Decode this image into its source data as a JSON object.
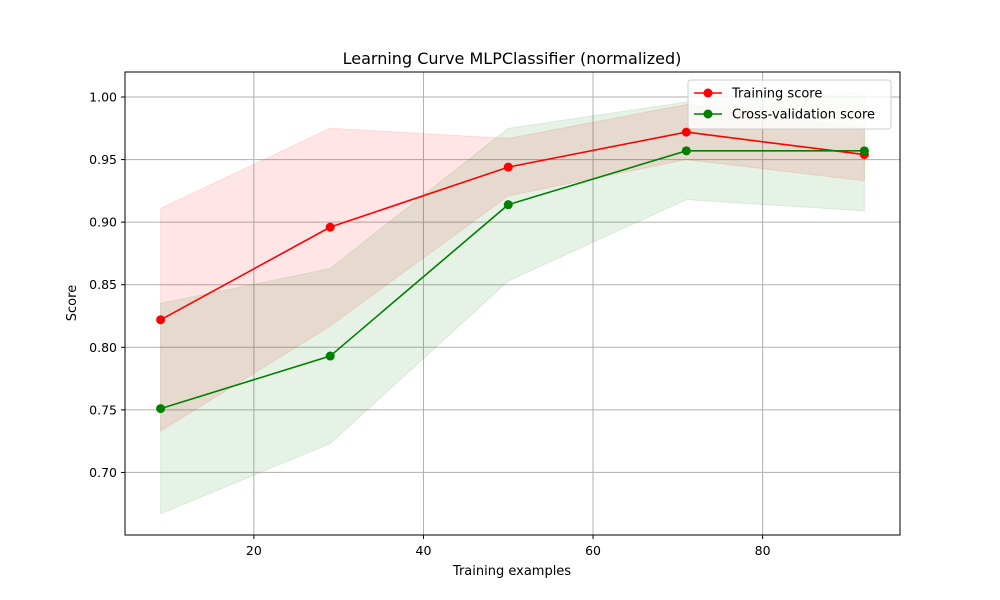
{
  "chart_data": {
    "type": "line",
    "title": "Learning Curve MLPClassifier (normalized)",
    "xlabel": "Training examples",
    "ylabel": "Score",
    "xlim": [
      4.8,
      96.2
    ],
    "ylim": [
      0.65,
      1.02
    ],
    "xticks": [
      20,
      40,
      60,
      80
    ],
    "yticks": [
      0.7,
      0.75,
      0.8,
      0.85,
      0.9,
      0.95,
      1.0
    ],
    "grid": true,
    "legend_position": "top-right",
    "x": [
      9,
      29,
      50,
      71,
      92
    ],
    "series": [
      {
        "name": "Training score",
        "color": "#ff0000",
        "fill_color": "#ff0000",
        "values": [
          0.822,
          0.896,
          0.944,
          0.972,
          0.954
        ],
        "lower": [
          0.733,
          0.817,
          0.921,
          0.95,
          0.933
        ],
        "upper": [
          0.911,
          0.975,
          0.967,
          0.994,
          0.975
        ]
      },
      {
        "name": "Cross-validation score",
        "color": "#008000",
        "fill_color": "#008000",
        "values": [
          0.751,
          0.793,
          0.914,
          0.957,
          0.957
        ],
        "lower": [
          0.667,
          0.723,
          0.853,
          0.918,
          0.909
        ],
        "upper": [
          0.835,
          0.863,
          0.975,
          0.996,
          1.004
        ]
      }
    ]
  }
}
